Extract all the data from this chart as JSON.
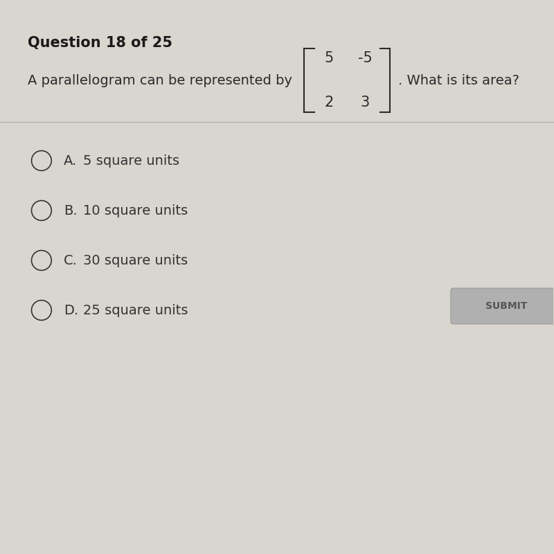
{
  "question_header": "Question 18 of 25",
  "question_text_before": "A parallelogram can be represented by",
  "matrix": [
    [
      5,
      -5
    ],
    [
      2,
      3
    ]
  ],
  "question_text_after": ". What is its area?",
  "options": [
    {
      "label": "A.",
      "text": "5 square units"
    },
    {
      "label": "B.",
      "text": "10 square units"
    },
    {
      "label": "C.",
      "text": "30 square units"
    },
    {
      "label": "D.",
      "text": "25 square units"
    }
  ],
  "bg_color": "#d9d6d0",
  "header_color": "#1a1a1a",
  "text_color": "#2a2a2a",
  "option_text_color": "#333333",
  "separator_color": "#aaaaaa",
  "submit_button_color": "#b0b0b0",
  "submit_text": "SUBMIT",
  "header_fontsize": 15,
  "question_fontsize": 14,
  "option_fontsize": 14
}
